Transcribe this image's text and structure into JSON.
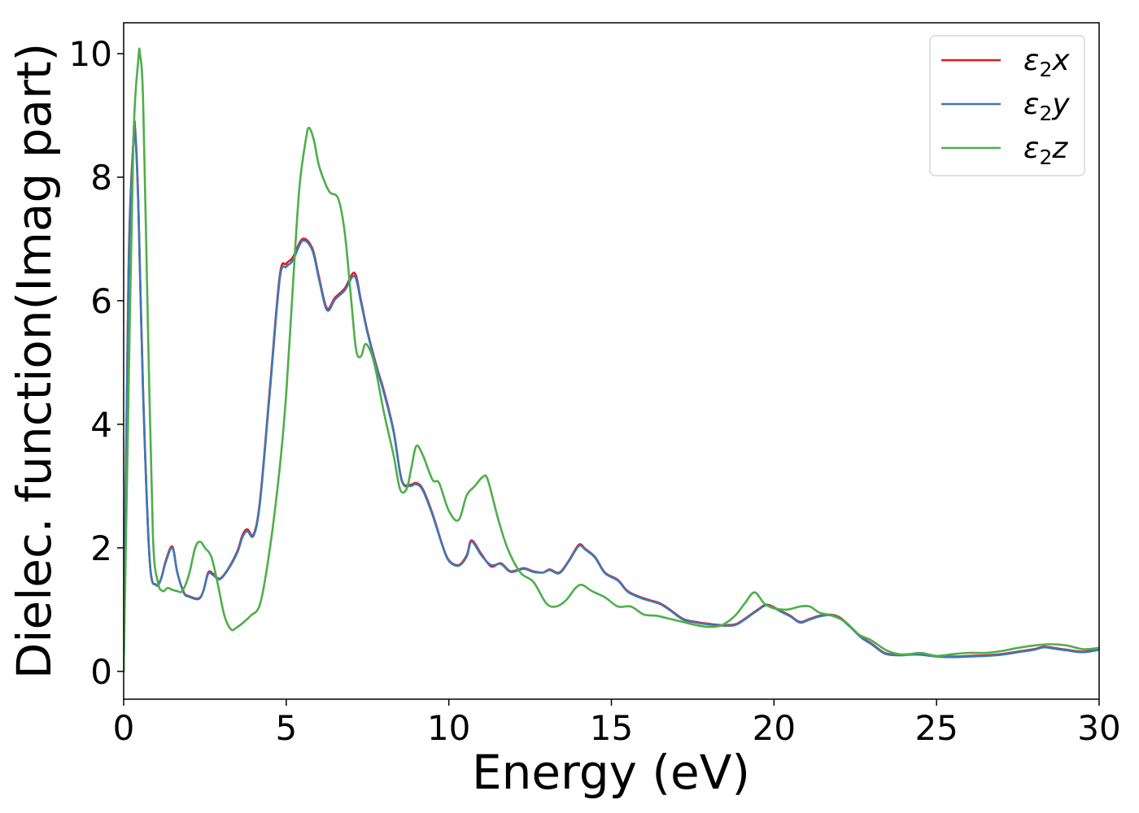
{
  "chart_data": {
    "type": "line",
    "title": "",
    "xlabel": "Energy (eV)",
    "ylabel": "Dielec. function(Imag part)",
    "xlim": [
      0,
      30
    ],
    "ylim": [
      -0.45,
      10.5
    ],
    "xticks": [
      0,
      5,
      10,
      15,
      20,
      25,
      30
    ],
    "xtick_labels": [
      "0",
      "5",
      "10",
      "15",
      "20",
      "25",
      "30"
    ],
    "yticks": [
      0,
      2,
      4,
      6,
      8,
      10
    ],
    "ytick_labels": [
      "0",
      "2",
      "4",
      "6",
      "8",
      "10"
    ],
    "grid": false,
    "legend_position": "upper-right",
    "series": [
      {
        "name": "ε₂x",
        "legend_base": "ε",
        "legend_sub": "2",
        "legend_suffix": "x",
        "color": "#e41a1c",
        "x": [
          0.0,
          0.15,
          0.3,
          0.35,
          0.45,
          0.6,
          0.8,
          1.0,
          1.15,
          1.3,
          1.5,
          1.65,
          1.85,
          2.0,
          2.3,
          2.45,
          2.6,
          2.75,
          2.95,
          3.2,
          3.5,
          3.65,
          3.8,
          4.0,
          4.2,
          4.5,
          4.8,
          5.0,
          5.2,
          5.5,
          5.8,
          6.0,
          6.25,
          6.5,
          6.8,
          7.1,
          7.3,
          7.5,
          7.8,
          8.0,
          8.3,
          8.55,
          8.8,
          9.0,
          9.2,
          9.5,
          9.8,
          10.0,
          10.3,
          10.55,
          10.7,
          11.0,
          11.3,
          11.6,
          11.9,
          12.3,
          12.6,
          12.9,
          13.1,
          13.4,
          13.7,
          14.0,
          14.2,
          14.5,
          14.8,
          15.2,
          15.5,
          15.9,
          16.2,
          16.5,
          16.8,
          17.2,
          17.6,
          18.0,
          18.4,
          18.8,
          19.1,
          19.5,
          19.8,
          20.2,
          20.5,
          20.8,
          21.1,
          21.4,
          21.7,
          22.0,
          22.3,
          22.7,
          23.0,
          23.4,
          23.8,
          24.2,
          24.5,
          25.0,
          25.5,
          26.0,
          26.5,
          27.0,
          27.5,
          28.0,
          28.3,
          28.6,
          29.0,
          29.5,
          30.0
        ],
        "values": [
          0.0,
          6.5,
          8.6,
          8.8,
          7.6,
          4.5,
          1.8,
          1.4,
          1.5,
          1.8,
          2.02,
          1.6,
          1.28,
          1.22,
          1.18,
          1.3,
          1.6,
          1.58,
          1.5,
          1.65,
          1.95,
          2.2,
          2.3,
          2.22,
          2.8,
          4.6,
          6.4,
          6.6,
          6.7,
          7.0,
          6.85,
          6.4,
          5.88,
          6.05,
          6.2,
          6.45,
          6.0,
          5.5,
          4.9,
          4.55,
          3.9,
          3.1,
          3.02,
          3.05,
          2.95,
          2.55,
          2.05,
          1.8,
          1.72,
          1.88,
          2.12,
          1.9,
          1.7,
          1.75,
          1.62,
          1.67,
          1.62,
          1.6,
          1.65,
          1.6,
          1.8,
          2.05,
          1.98,
          1.85,
          1.6,
          1.48,
          1.3,
          1.2,
          1.15,
          1.1,
          1.0,
          0.85,
          0.8,
          0.77,
          0.75,
          0.76,
          0.85,
          1.0,
          1.08,
          0.98,
          0.9,
          0.8,
          0.85,
          0.9,
          0.92,
          0.88,
          0.75,
          0.55,
          0.45,
          0.3,
          0.27,
          0.28,
          0.28,
          0.25,
          0.24,
          0.25,
          0.26,
          0.28,
          0.32,
          0.36,
          0.4,
          0.38,
          0.35,
          0.32,
          0.36
        ]
      },
      {
        "name": "ε₂y",
        "legend_base": "ε",
        "legend_sub": "2",
        "legend_suffix": "y",
        "color": "#3d78b5",
        "x": [
          0.0,
          0.15,
          0.3,
          0.35,
          0.45,
          0.6,
          0.8,
          1.0,
          1.15,
          1.3,
          1.5,
          1.65,
          1.85,
          2.0,
          2.3,
          2.45,
          2.6,
          2.75,
          2.95,
          3.2,
          3.5,
          3.65,
          3.8,
          4.0,
          4.2,
          4.5,
          4.8,
          5.0,
          5.2,
          5.5,
          5.8,
          6.0,
          6.25,
          6.5,
          6.8,
          7.1,
          7.3,
          7.5,
          7.8,
          8.0,
          8.3,
          8.55,
          8.8,
          9.0,
          9.2,
          9.5,
          9.8,
          10.0,
          10.3,
          10.55,
          10.7,
          11.0,
          11.3,
          11.6,
          11.9,
          12.3,
          12.6,
          12.9,
          13.1,
          13.4,
          13.7,
          14.0,
          14.2,
          14.5,
          14.8,
          15.2,
          15.5,
          15.9,
          16.2,
          16.5,
          16.8,
          17.2,
          17.6,
          18.0,
          18.4,
          18.8,
          19.1,
          19.5,
          19.8,
          20.2,
          20.5,
          20.8,
          21.1,
          21.4,
          21.7,
          22.0,
          22.3,
          22.7,
          23.0,
          23.4,
          23.8,
          24.2,
          24.5,
          25.0,
          25.5,
          26.0,
          26.5,
          27.0,
          27.5,
          28.0,
          28.3,
          28.6,
          29.0,
          29.5,
          30.0
        ],
        "values": [
          0.0,
          6.4,
          8.55,
          8.75,
          7.55,
          4.45,
          1.8,
          1.4,
          1.5,
          1.78,
          2.0,
          1.6,
          1.27,
          1.21,
          1.17,
          1.3,
          1.58,
          1.56,
          1.49,
          1.64,
          1.93,
          2.17,
          2.27,
          2.2,
          2.77,
          4.55,
          6.35,
          6.55,
          6.65,
          6.97,
          6.82,
          6.37,
          5.85,
          6.02,
          6.17,
          6.4,
          5.97,
          5.48,
          4.88,
          4.52,
          3.88,
          3.09,
          3.0,
          3.03,
          2.93,
          2.53,
          2.04,
          1.79,
          1.71,
          1.86,
          2.1,
          1.88,
          1.72,
          1.74,
          1.61,
          1.66,
          1.61,
          1.6,
          1.64,
          1.59,
          1.79,
          2.03,
          1.97,
          1.84,
          1.59,
          1.47,
          1.29,
          1.19,
          1.14,
          1.09,
          0.99,
          0.84,
          0.79,
          0.76,
          0.74,
          0.75,
          0.84,
          0.99,
          1.07,
          0.97,
          0.89,
          0.79,
          0.84,
          0.89,
          0.91,
          0.87,
          0.74,
          0.54,
          0.44,
          0.29,
          0.26,
          0.27,
          0.27,
          0.24,
          0.23,
          0.24,
          0.25,
          0.27,
          0.31,
          0.35,
          0.39,
          0.37,
          0.34,
          0.31,
          0.35
        ]
      },
      {
        "name": "ε₂z",
        "legend_base": "ε",
        "legend_sub": "2",
        "legend_suffix": "z",
        "color": "#4daf4a",
        "x": [
          0.0,
          0.15,
          0.3,
          0.45,
          0.5,
          0.6,
          0.75,
          0.9,
          1.05,
          1.2,
          1.35,
          1.5,
          1.65,
          1.8,
          2.0,
          2.2,
          2.35,
          2.5,
          2.7,
          2.9,
          3.1,
          3.3,
          3.45,
          3.7,
          3.9,
          4.2,
          4.5,
          4.8,
          5.0,
          5.2,
          5.4,
          5.6,
          5.7,
          5.85,
          6.0,
          6.2,
          6.35,
          6.6,
          6.8,
          7.0,
          7.15,
          7.3,
          7.45,
          7.7,
          8.0,
          8.3,
          8.5,
          8.7,
          8.85,
          9.0,
          9.2,
          9.5,
          9.7,
          10.0,
          10.3,
          10.55,
          10.8,
          11.05,
          11.2,
          11.5,
          11.8,
          12.2,
          12.6,
          13.0,
          13.3,
          13.6,
          13.9,
          14.1,
          14.4,
          14.8,
          15.2,
          15.6,
          16.0,
          16.4,
          16.8,
          17.2,
          17.6,
          18.0,
          18.4,
          18.8,
          19.1,
          19.4,
          19.7,
          20.0,
          20.4,
          20.8,
          21.1,
          21.4,
          21.8,
          22.2,
          22.6,
          23.0,
          23.5,
          24.0,
          24.5,
          25.0,
          25.5,
          26.0,
          26.5,
          27.0,
          27.5,
          28.0,
          28.5,
          29.0,
          29.5,
          30.0
        ],
        "values": [
          0.0,
          4.5,
          8.6,
          9.9,
          10.0,
          9.2,
          5.5,
          2.2,
          1.45,
          1.3,
          1.35,
          1.32,
          1.3,
          1.3,
          1.55,
          2.0,
          2.1,
          2.0,
          1.85,
          1.4,
          0.9,
          0.68,
          0.7,
          0.8,
          0.9,
          1.1,
          2.0,
          3.3,
          4.5,
          6.2,
          7.8,
          8.6,
          8.8,
          8.6,
          8.2,
          7.9,
          7.75,
          7.65,
          7.1,
          6.0,
          5.2,
          5.1,
          5.3,
          5.0,
          4.2,
          3.5,
          2.95,
          2.95,
          3.3,
          3.65,
          3.5,
          3.1,
          3.05,
          2.6,
          2.45,
          2.85,
          3.0,
          3.15,
          3.1,
          2.5,
          2.0,
          1.6,
          1.45,
          1.1,
          1.05,
          1.15,
          1.35,
          1.4,
          1.3,
          1.2,
          1.05,
          1.05,
          0.92,
          0.9,
          0.85,
          0.8,
          0.75,
          0.72,
          0.75,
          0.9,
          1.1,
          1.28,
          1.1,
          1.02,
          1.0,
          1.05,
          1.05,
          0.95,
          0.9,
          0.8,
          0.6,
          0.5,
          0.33,
          0.27,
          0.3,
          0.25,
          0.28,
          0.3,
          0.3,
          0.33,
          0.38,
          0.42,
          0.44,
          0.42,
          0.36,
          0.38
        ]
      }
    ]
  }
}
